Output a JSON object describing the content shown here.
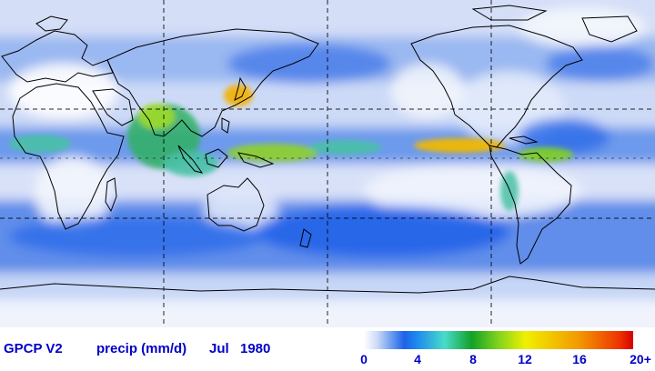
{
  "dataset_label": "GPCP V2",
  "variable_label": "precip (mm/d)",
  "month_label": "Jul",
  "year_label": "1980",
  "colorbar": {
    "ticks": [
      "0",
      "4",
      "8",
      "12",
      "16",
      "20+"
    ],
    "min": 0,
    "max": 20,
    "stops": [
      {
        "value": 0,
        "color": "#ffffff"
      },
      {
        "value": 1,
        "color": "#ccd9f7"
      },
      {
        "value": 2,
        "color": "#6f9ff0"
      },
      {
        "value": 3,
        "color": "#1f62ea"
      },
      {
        "value": 4,
        "color": "#1f8cec"
      },
      {
        "value": 6,
        "color": "#49dccb"
      },
      {
        "value": 8,
        "color": "#12a128"
      },
      {
        "value": 10,
        "color": "#82d31c"
      },
      {
        "value": 12,
        "color": "#f0f000"
      },
      {
        "value": 16,
        "color": "#f39800"
      },
      {
        "value": 19,
        "color": "#ee3300"
      },
      {
        "value": 20,
        "color": "#d60000"
      }
    ]
  },
  "text_color": "#0000c8"
}
